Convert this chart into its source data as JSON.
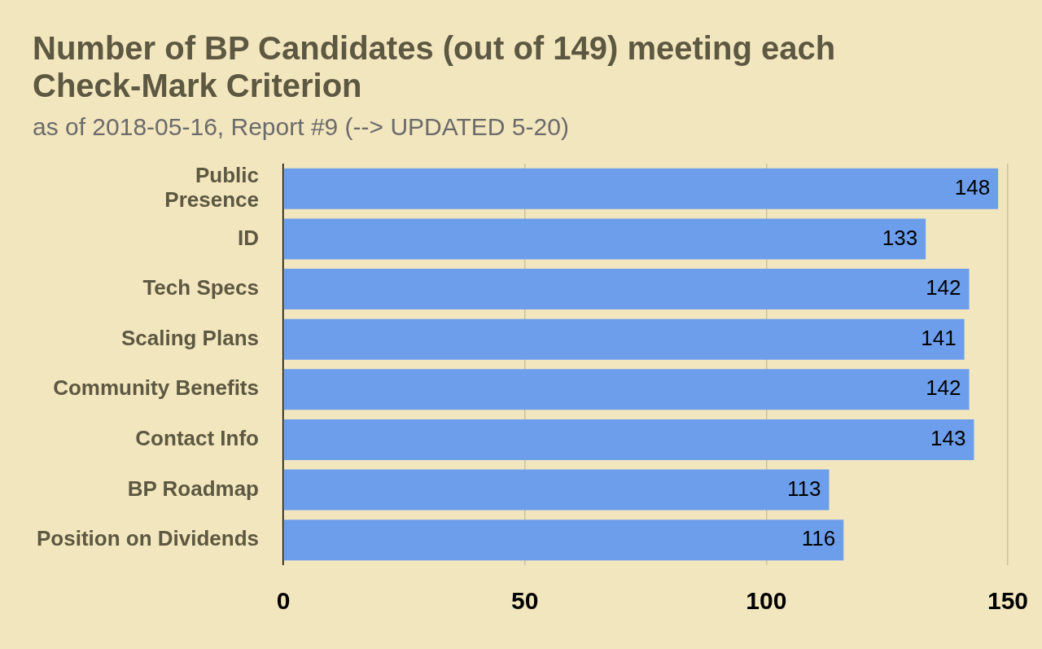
{
  "chart_data": {
    "type": "bar",
    "orientation": "horizontal",
    "title": "Number of BP Candidates (out of 149) meeting each Check-Mark Criterion",
    "subtitle": "as of 2018-05-16, Report #9 (--> UPDATED 5-20)",
    "categories": [
      "Public\nPresence",
      "ID",
      "Tech Specs",
      "Scaling Plans",
      "Community Benefits",
      "Contact Info",
      "BP Roadmap",
      "Position on Dividends"
    ],
    "values": [
      148,
      133,
      142,
      141,
      142,
      143,
      113,
      116
    ],
    "color": "#6d9eeb",
    "xlim": [
      0,
      150
    ],
    "xticks": [
      0,
      50,
      100,
      150
    ],
    "grid": "x",
    "data_labels": true
  }
}
